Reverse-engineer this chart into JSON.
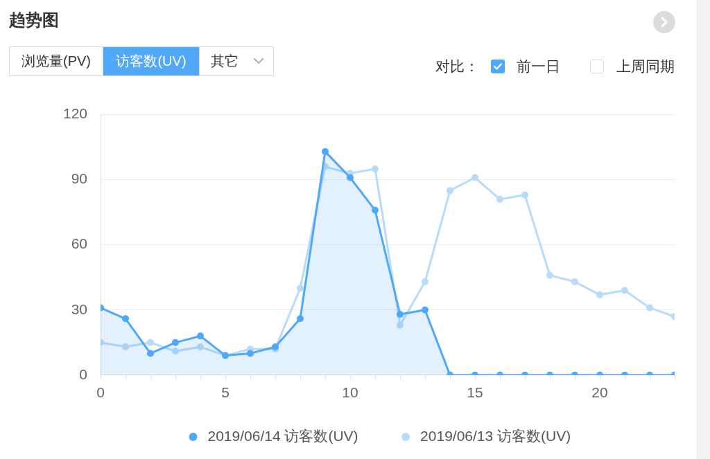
{
  "chart_data": {
    "type": "line",
    "title": "趋势图",
    "annotations": [
      "浏览量(PV)",
      "访客数(UV)",
      "其它",
      "对比：",
      "前一日",
      "上周同期"
    ],
    "x": [
      0,
      1,
      2,
      3,
      4,
      5,
      6,
      7,
      8,
      9,
      10,
      11,
      12,
      13,
      14,
      15,
      16,
      17,
      18,
      19,
      20,
      21,
      22,
      23
    ],
    "series": [
      {
        "name": "2019/06/14 访客数(UV)",
        "type": "area",
        "color": "#4fa8f8",
        "values": [
          31,
          26,
          10,
          15,
          18,
          9,
          10,
          13,
          26,
          103,
          91,
          76,
          28,
          30,
          0,
          0,
          0,
          0,
          0,
          0,
          0,
          0,
          0,
          0
        ]
      },
      {
        "name": "2019/06/13 访客数(UV)",
        "type": "line",
        "color": "#b7dbfa",
        "values": [
          15,
          13,
          15,
          11,
          13,
          9,
          12,
          12,
          40,
          96,
          93,
          95,
          23,
          43,
          85,
          91,
          81,
          83,
          46,
          43,
          37,
          39,
          31,
          27
        ]
      }
    ],
    "xlim": [
      0,
      23
    ],
    "xticks": [
      0,
      {
        "value": 1,
        "label": null
      },
      {
        "value": 2,
        "label": null
      },
      {
        "value": 3,
        "label": null
      },
      {
        "value": 4,
        "label": null
      },
      5,
      {
        "value": 6,
        "label": null
      },
      {
        "value": 7,
        "label": null
      },
      {
        "value": 8,
        "label": null
      },
      {
        "value": 9,
        "label": null
      },
      10,
      {
        "value": 11,
        "label": null
      },
      {
        "value": 12,
        "label": null
      },
      {
        "value": 13,
        "label": null
      },
      {
        "value": 14,
        "label": null
      },
      15,
      {
        "value": 16,
        "label": null
      },
      {
        "value": 17,
        "label": null
      },
      {
        "value": 18,
        "label": null
      },
      {
        "value": 19,
        "label": null
      },
      20,
      {
        "value": 21,
        "label": null
      },
      {
        "value": 22,
        "label": null
      },
      {
        "value": 23,
        "label": null
      }
    ],
    "ylim": [
      0,
      120
    ],
    "yticks": [
      0,
      30,
      60,
      90,
      120
    ],
    "grid": "y",
    "legend": "bottom",
    "marker": "circle",
    "line_style": "solid"
  }
}
